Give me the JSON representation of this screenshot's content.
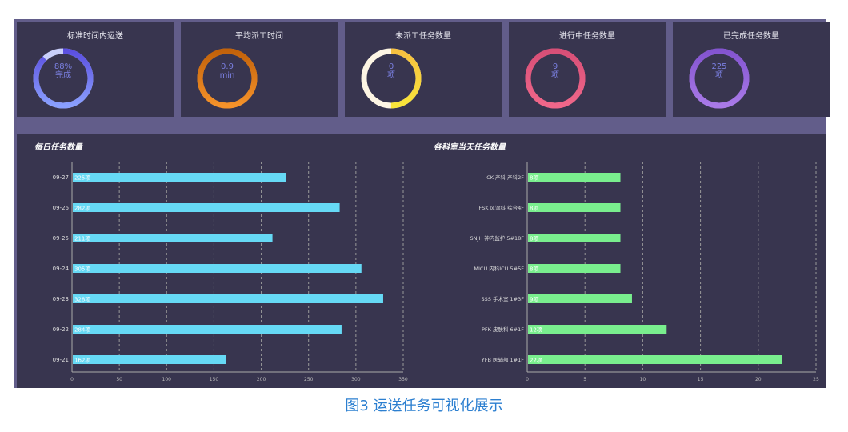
{
  "cards": [
    {
      "title": "标准时间内运送",
      "value": "88%",
      "unit": "完成",
      "fraction": 0.88,
      "colors": [
        "#8aa0ff",
        "#5b4fe0"
      ],
      "track": "#c9cffa"
    },
    {
      "title": "平均派工时间",
      "value": "0.9",
      "unit": "min",
      "fraction": 1,
      "colors": [
        "#f5922a",
        "#c2620a"
      ],
      "track": "#f5922a"
    },
    {
      "title": "未派工任务数量",
      "value": "0",
      "unit": "项",
      "fraction": 0.5,
      "colors": [
        "#f9e53a",
        "#f6c040"
      ],
      "track": "#fdf5e4"
    },
    {
      "title": "进行中任务数量",
      "value": "9",
      "unit": "项",
      "fraction": 1,
      "colors": [
        "#f0678a",
        "#d84f77"
      ],
      "track": "#f0678a"
    },
    {
      "title": "已完成任务数量",
      "value": "225",
      "unit": "项",
      "fraction": 1,
      "colors": [
        "#a97ae8",
        "#8354d0"
      ],
      "track": "#a97ae8"
    }
  ],
  "chart_data": [
    {
      "type": "bar",
      "orientation": "horizontal",
      "title": "每日任务数量",
      "categories": [
        "09-27",
        "09-26",
        "09-25",
        "09-24",
        "09-23",
        "09-22",
        "09-21"
      ],
      "values": [
        225,
        282,
        211,
        305,
        328,
        284,
        162
      ],
      "label_suffix": "项",
      "xlim": [
        0,
        350
      ],
      "xticks": [
        0,
        50,
        100,
        150,
        200,
        250,
        300,
        350
      ],
      "grid": "dashed vertical",
      "color": "#66d9f5"
    },
    {
      "type": "bar",
      "orientation": "horizontal",
      "title": "各科室当天任务数量",
      "categories": [
        "CK 产科 产科2F",
        "FSK 风湿科 综合4F",
        "SNJH 神内监护 5#18F",
        "MICU 内科ICU 5#5F",
        "SSS 手术室 1#3F",
        "PFK 皮肤科 6#1F",
        "YFB 医辅部 1#1F"
      ],
      "values": [
        8,
        8,
        8,
        8,
        9,
        12,
        22
      ],
      "label_suffix": "项",
      "xlim": [
        0,
        25
      ],
      "xticks": [
        0,
        5,
        10,
        15,
        20,
        25
      ],
      "grid": "dashed vertical",
      "color": "#79ee8e"
    }
  ],
  "caption": "图3 运送任务可视化展示"
}
